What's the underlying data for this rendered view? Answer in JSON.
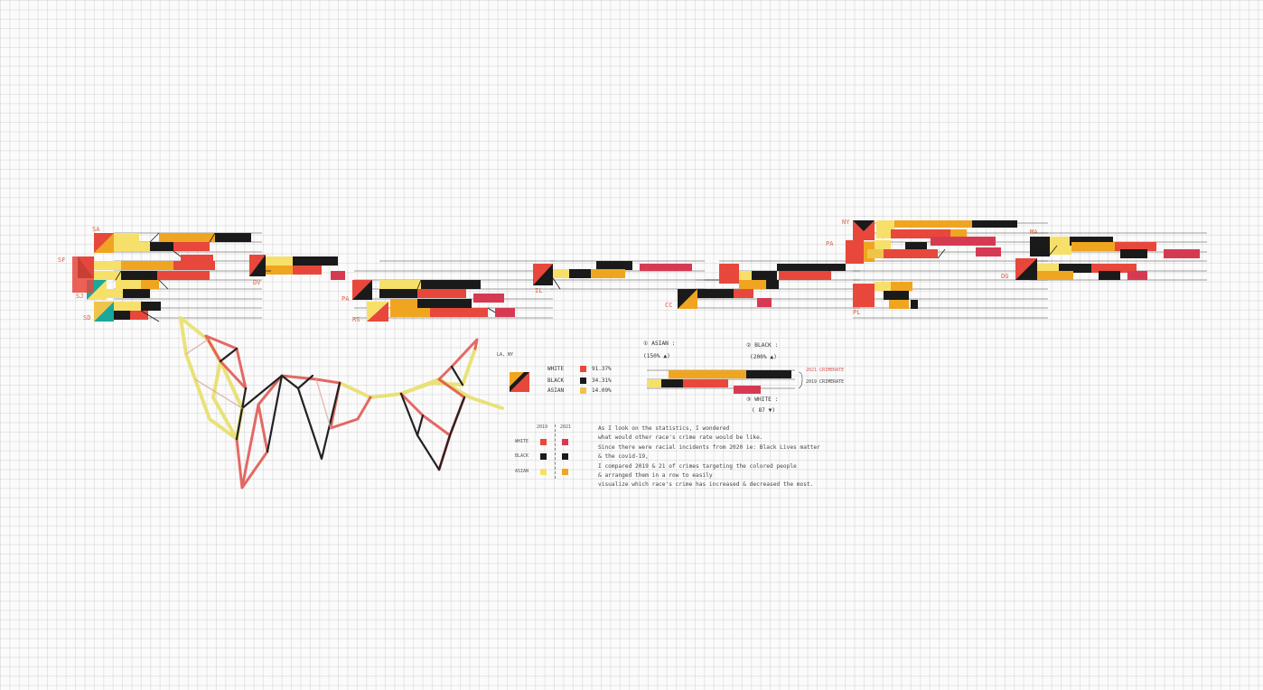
{
  "city_labels": [
    "SA",
    "SF",
    "SJ",
    "SD",
    "DV",
    "PA",
    "RS",
    "IL",
    "CC",
    "NY",
    "PA",
    "PL",
    "MA",
    "DG"
  ],
  "legend": {
    "subtitle": "LA, NY",
    "rows": [
      {
        "label": "WHITE",
        "value": "91.37%",
        "color": "#e8473c"
      },
      {
        "label": "BLACK",
        "value": "34.31%",
        "color": "#1a1a1a"
      },
      {
        "label": "ASIAN",
        "value": "14.09%",
        "color": "#f0c44a"
      }
    ]
  },
  "year_key": {
    "years": [
      "2019",
      "2021"
    ],
    "rows": [
      {
        "label": "WHITE",
        "c2019": "#e8473c",
        "c2021": "#d63a52"
      },
      {
        "label": "BLACK",
        "c2019": "#1a1a1a",
        "c2021": "#1a1a1a"
      },
      {
        "label": "ASIAN",
        "c2019": "#f6e06a",
        "c2021": "#f0a520"
      }
    ]
  },
  "detail": {
    "asian_label": "① ASIAN :",
    "asian_change": "(150% ▲)",
    "black_label": "② BLACK :",
    "black_change": "(200% ▲)",
    "white_label": "③ WHITE :",
    "white_change": "( 87 ▼)",
    "rate_2021": "2021 CRIMERATE",
    "rate_2019": "2019 CRIMERATE"
  },
  "notes": [
    "As I look on the statistics, I wondered",
    "what would other race's crime rate would be like.",
    "Since there were racial incidents from 2020 ie: Black Lives matter",
    "& the covid-19,",
    "I compared 2019 & 21 of crimes targeting the colored people",
    "& arranged them in a row to easily",
    "visualize which race's crime has increased & decreased the most."
  ],
  "colors": {
    "white_race": "#e8473c",
    "black_race": "#1a1a1a",
    "asian_2019": "#f6e06a",
    "asian_2021": "#f0a520",
    "white_2021": "#d63a52",
    "teal": "#1aa89a"
  }
}
